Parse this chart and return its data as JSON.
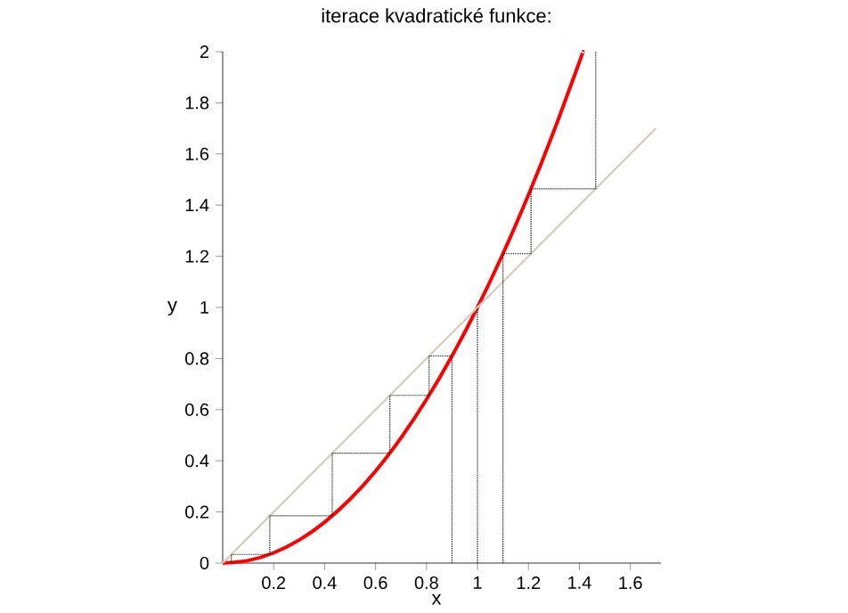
{
  "chart_data": {
    "type": "line",
    "title": "iterace kvadratické funkce:",
    "xlabel": "x",
    "ylabel": "y",
    "xlim": [
      0,
      1.72
    ],
    "ylim": [
      0,
      2
    ],
    "xticks": [
      0.2,
      0.4,
      0.6,
      0.8,
      1,
      1.2,
      1.4,
      1.6
    ],
    "yticks": [
      0,
      0.2,
      0.4,
      0.6,
      0.8,
      1,
      1.2,
      1.4,
      1.6,
      1.8,
      2
    ],
    "grid": false,
    "marker": "none",
    "series": [
      {
        "color": "#ff0000",
        "line_style": "solid",
        "x": [
          0,
          0.1,
          0.2,
          0.3,
          0.4,
          0.5,
          0.6,
          0.7,
          0.8,
          0.9,
          1,
          1.1,
          1.2,
          1.3,
          1.4,
          1.414
        ],
        "values": [
          0,
          0.01,
          0.04,
          0.09,
          0.16,
          0.25,
          0.36,
          0.49,
          0.64,
          0.81,
          1,
          1.21,
          1.44,
          1.69,
          1.96,
          2
        ]
      },
      {
        "color": "#d4d0c0",
        "line_style": "solid",
        "x": [
          0,
          1.7
        ],
        "values": [
          0,
          1.7
        ]
      },
      {
        "color": "#000000",
        "line_style": "dotted",
        "x": [
          0.9,
          0.9,
          0.81,
          0.81,
          0.656,
          0.656,
          0.43,
          0.43,
          0.185,
          0.185,
          0.034,
          0.034
        ],
        "values": [
          0,
          0.81,
          0.81,
          0.656,
          0.656,
          0.43,
          0.43,
          0.185,
          0.185,
          0.034,
          0.034,
          0.001
        ]
      },
      {
        "color": "#000000",
        "line_style": "dotted",
        "x": [
          1,
          1
        ],
        "values": [
          0,
          1
        ]
      },
      {
        "color": "#000000",
        "line_style": "dotted",
        "x": [
          1.1,
          1.1,
          1.21,
          1.21,
          1.464,
          1.464
        ],
        "values": [
          0,
          1.21,
          1.21,
          1.464,
          1.464,
          2
        ]
      }
    ]
  }
}
